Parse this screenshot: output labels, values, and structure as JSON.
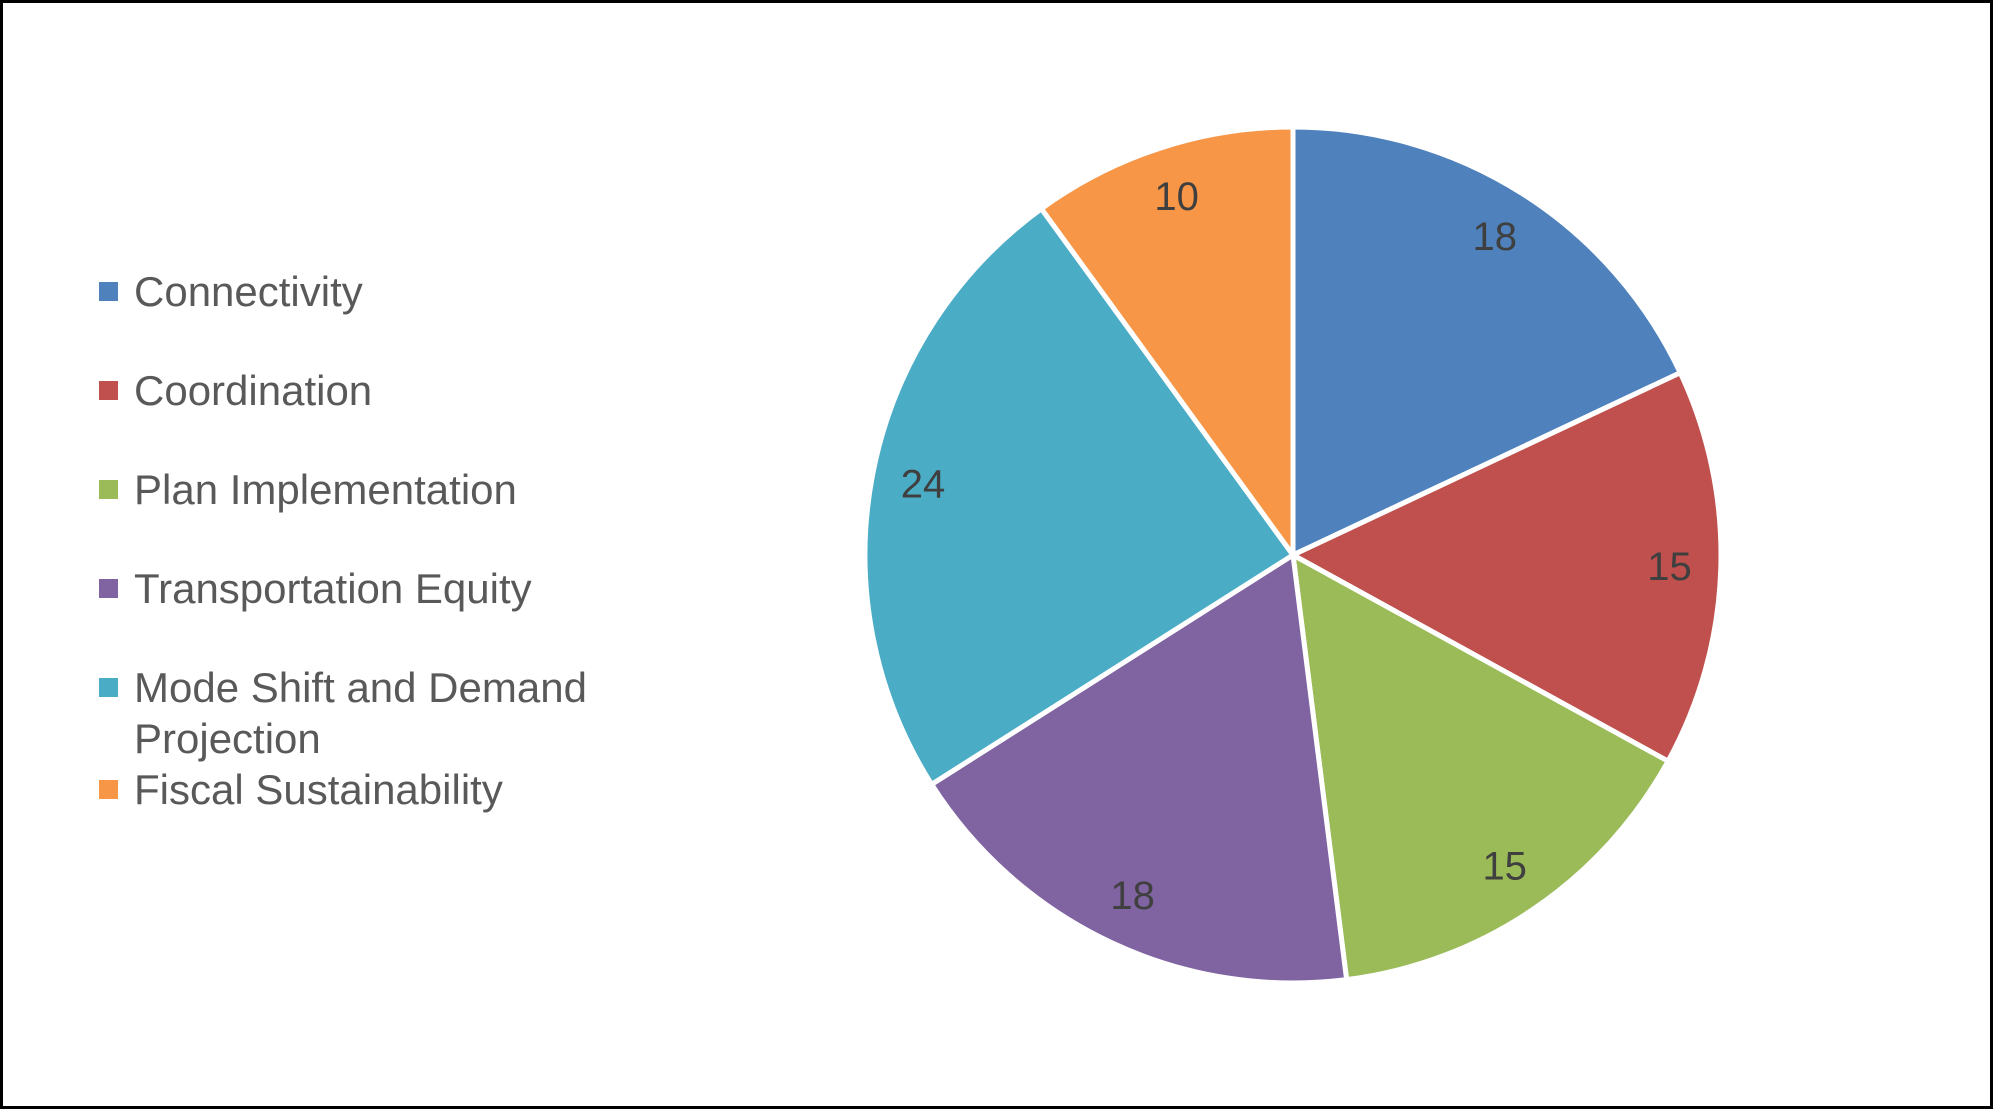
{
  "chart_data": {
    "type": "pie",
    "title": "",
    "series": [
      {
        "name": "Connectivity",
        "value": 18,
        "color": "#4F81BD"
      },
      {
        "name": "Coordination",
        "value": 15,
        "color": "#C0504D"
      },
      {
        "name": "Plan Implementation",
        "value": 15,
        "color": "#9BBB59"
      },
      {
        "name": "Transportation Equity",
        "value": 18,
        "color": "#8064A2"
      },
      {
        "name": "Mode Shift and Demand Projection",
        "value": 24,
        "color": "#4BACC6"
      },
      {
        "name": "Fiscal Sustainability",
        "value": 10,
        "color": "#F79646"
      }
    ],
    "data_labels": [
      18,
      15,
      15,
      18,
      24,
      10
    ],
    "total": 100,
    "start_angle_deg": 0,
    "direction": "clockwise",
    "legend_position": "left",
    "label_color": "#3F3F3F",
    "legend_text_color": "#595959",
    "slice_gap_color": "#FFFFFF",
    "background_color": "#FFFFFF",
    "frame_border_color": "#000000"
  }
}
